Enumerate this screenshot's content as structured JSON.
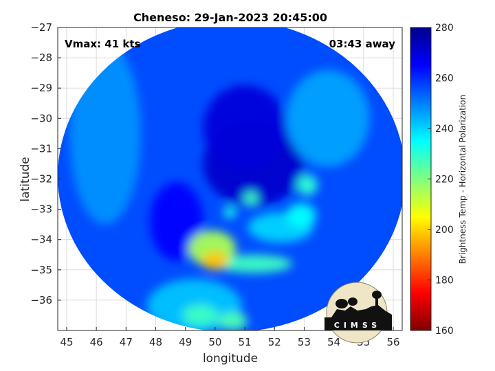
{
  "chart_data": {
    "type": "heatmap",
    "title": "Cheneso: 29-Jan-2023 20:45:00",
    "xlabel": "longitude",
    "ylabel": "latitude",
    "xlim": [
      44.7,
      56.3
    ],
    "ylim": [
      -37,
      -27
    ],
    "xticks": [
      45,
      46,
      47,
      48,
      49,
      50,
      51,
      52,
      53,
      54,
      55,
      56
    ],
    "yticks": [
      -27,
      -28,
      -29,
      -30,
      -31,
      -32,
      -33,
      -34,
      -35,
      -36
    ],
    "grid": true,
    "annotations": {
      "vmax": "Vmax: 41 kts",
      "away": "03:43 away"
    },
    "colorbar": {
      "label": "Brightness Temp - Horizontal Polarization",
      "range": [
        160,
        280
      ],
      "ticks": [
        160,
        180,
        200,
        220,
        240,
        260,
        280
      ],
      "colormap": "jet"
    },
    "swath": {
      "center": [
        50.55,
        -31.9
      ],
      "radius_lon": 5.85,
      "radius_lat": 5.15
    },
    "background_value": 256,
    "features": [
      {
        "lon": 51.3,
        "lat": -31.5,
        "rlon": 1.7,
        "rlat": 1.4,
        "value": 272
      },
      {
        "lon": 51.0,
        "lat": -30.3,
        "rlon": 1.4,
        "rlat": 1.4,
        "value": 270
      },
      {
        "lon": 48.7,
        "lat": -33.4,
        "rlon": 0.9,
        "rlat": 1.3,
        "value": 265
      },
      {
        "lon": 46.3,
        "lat": -30.5,
        "rlon": 1.2,
        "rlat": 3.0,
        "value": 248
      },
      {
        "lon": 53.8,
        "lat": -30.0,
        "rlon": 1.4,
        "rlat": 1.6,
        "value": 246
      },
      {
        "lon": 49.3,
        "lat": -36.2,
        "rlon": 1.6,
        "rlat": 0.9,
        "value": 242
      },
      {
        "lon": 52.2,
        "lat": -33.6,
        "rlon": 1.1,
        "rlat": 0.5,
        "value": 240
      },
      {
        "lon": 52.9,
        "lat": -33.2,
        "rlon": 0.5,
        "rlat": 0.4,
        "value": 235
      },
      {
        "lon": 53.1,
        "lat": -32.2,
        "rlon": 0.35,
        "rlat": 0.35,
        "value": 230
      },
      {
        "lon": 51.2,
        "lat": -32.65,
        "rlon": 0.25,
        "rlat": 0.25,
        "value": 228
      },
      {
        "lon": 50.5,
        "lat": -33.1,
        "rlon": 0.22,
        "rlat": 0.2,
        "value": 232
      },
      {
        "lon": 51.3,
        "lat": -34.8,
        "rlon": 1.3,
        "rlat": 0.3,
        "value": 228
      },
      {
        "lon": 49.9,
        "lat": -34.3,
        "rlon": 0.8,
        "rlat": 0.6,
        "value": 215
      },
      {
        "lon": 50.0,
        "lat": -34.7,
        "rlon": 0.45,
        "rlat": 0.3,
        "value": 198
      },
      {
        "lon": 49.5,
        "lat": -36.5,
        "rlon": 0.6,
        "rlat": 0.35,
        "value": 228
      },
      {
        "lon": 50.6,
        "lat": -36.7,
        "rlon": 0.5,
        "rlat": 0.3,
        "value": 226
      }
    ]
  },
  "logo": {
    "text": "CIMSS"
  }
}
